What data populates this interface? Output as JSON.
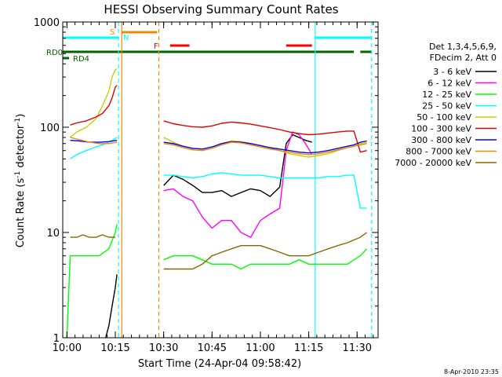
{
  "chart_data": {
    "type": "line",
    "title": "HESSI Observing Summary Count Rates",
    "xlabel": "Start Time (24-Apr-04 09:58:42)",
    "ylabel_main": "Count Rate (s",
    "ylabel_sup1": "-1",
    "ylabel_mid": " detector",
    "ylabel_sup2": "-1",
    "ylabel_end": ")",
    "yscale": "log",
    "xlim": [
      "09:58:42",
      "11:36:30"
    ],
    "ylim": [
      1,
      1000
    ],
    "x_ticks": [
      "10:00",
      "10:15",
      "10:30",
      "10:45",
      "11:00",
      "11:15",
      "11:30"
    ],
    "y_ticks": [
      "1",
      "10",
      "100",
      "1000"
    ],
    "footer_date": "8-Apr-2010 23:35",
    "legend": {
      "header": [
        "Det 1,3,4,5,6,9,",
        "FDecim 2, Att 0"
      ],
      "entries": [
        {
          "label": "3 - 6 keV",
          "color": "#000000"
        },
        {
          "label": "6 - 12 keV",
          "color": "#ff00ff"
        },
        {
          "label": "12 - 25 keV",
          "color": "#00ff00"
        },
        {
          "label": "25 - 50 keV",
          "color": "#00ffff"
        },
        {
          "label": "50 - 100 keV",
          "color": "#cccc00"
        },
        {
          "label": "100 - 300 keV",
          "color": "#dd0000"
        },
        {
          "label": "300 - 800 keV",
          "color": "#0000ff"
        },
        {
          "label": "800 - 7000 keV",
          "color": "#ee8800"
        },
        {
          "label": "7000 - 20000 keV",
          "color": "#886600"
        }
      ]
    },
    "flags": [
      {
        "label": "RD0",
        "color": "#006600",
        "segments": [
          [
            "09:58:42",
            "11:29:00"
          ],
          [
            "11:31:00",
            "11:34:30"
          ]
        ]
      },
      {
        "label": "RD4",
        "color": "#006600",
        "segments": [
          [
            "09:58:42",
            "10:00:00"
          ]
        ]
      },
      {
        "label": "S",
        "color": "#ee8800",
        "segments": [
          [
            "10:17:00",
            "10:28:00"
          ]
        ]
      },
      {
        "label": "F",
        "color": "#ff0000",
        "segments": [
          [
            "10:32:00",
            "10:38:00"
          ],
          [
            "11:08:00",
            "11:16:00"
          ]
        ]
      },
      {
        "label": "N",
        "color": "#00ffff",
        "segments": [
          [
            "09:58:42",
            "10:16:00"
          ],
          [
            "11:17:00",
            "11:34:30"
          ]
        ]
      }
    ],
    "markers": [
      {
        "time": "10:16:00",
        "color": "#00ffff",
        "style": "dash"
      },
      {
        "time": "10:17:00",
        "color": "#ee8800",
        "style": "solid"
      },
      {
        "time": "10:28:30",
        "color": "#ee8800",
        "style": "dash"
      },
      {
        "time": "11:17:00",
        "color": "#00ffff",
        "style": "solid"
      },
      {
        "time": "11:34:30",
        "color": "#00ffff",
        "style": "dash"
      }
    ],
    "series": [
      {
        "name": "3 - 6 keV",
        "color": "#000000",
        "points": [
          [
            "10:12",
            1.0
          ],
          [
            "10:13",
            1.3
          ],
          [
            "10:14",
            2.0
          ],
          [
            "10:15",
            3.0
          ],
          [
            "10:15:30",
            4.0
          ],
          [
            "10:30",
            28
          ],
          [
            "10:33",
            35
          ],
          [
            "10:36",
            32
          ],
          [
            "10:39",
            28
          ],
          [
            "10:42",
            24
          ],
          [
            "10:45",
            24
          ],
          [
            "10:48",
            25
          ],
          [
            "10:51",
            22
          ],
          [
            "10:54",
            24
          ],
          [
            "10:57",
            26
          ],
          [
            "11:00",
            25
          ],
          [
            "11:03",
            22
          ],
          [
            "11:06",
            27
          ],
          [
            "11:08",
            70
          ],
          [
            "11:10",
            85
          ],
          [
            "11:12",
            80
          ],
          [
            "11:14",
            75
          ],
          [
            "11:16",
            72
          ]
        ]
      },
      {
        "name": "6 - 12 keV",
        "color": "#ff00ff",
        "points": [
          [
            "10:30",
            25
          ],
          [
            "10:33",
            26
          ],
          [
            "10:36",
            22
          ],
          [
            "10:39",
            20
          ],
          [
            "10:42",
            14
          ],
          [
            "10:45",
            11
          ],
          [
            "10:48",
            13
          ],
          [
            "10:51",
            13
          ],
          [
            "10:54",
            10
          ],
          [
            "10:57",
            9
          ],
          [
            "11:00",
            13
          ],
          [
            "11:03",
            15
          ],
          [
            "11:06",
            17
          ],
          [
            "11:08",
            60
          ],
          [
            "11:10",
            90
          ],
          [
            "11:12",
            85
          ],
          [
            "11:14",
            70
          ],
          [
            "11:16",
            55
          ]
        ]
      },
      {
        "name": "12 - 25 keV",
        "color": "#00ff00",
        "points": [
          [
            "10:00",
            1.0
          ],
          [
            "10:01",
            6
          ],
          [
            "10:04",
            6
          ],
          [
            "10:07",
            6
          ],
          [
            "10:10",
            6
          ],
          [
            "10:13",
            7
          ],
          [
            "10:15",
            10
          ],
          [
            "10:15:30",
            12
          ],
          [
            "10:30",
            5.5
          ],
          [
            "10:33",
            6
          ],
          [
            "10:36",
            6
          ],
          [
            "10:39",
            6
          ],
          [
            "10:42",
            5.5
          ],
          [
            "10:45",
            5
          ],
          [
            "10:48",
            5
          ],
          [
            "10:51",
            5
          ],
          [
            "10:54",
            4.5
          ],
          [
            "10:57",
            5
          ],
          [
            "11:00",
            5
          ],
          [
            "11:03",
            5
          ],
          [
            "11:06",
            5
          ],
          [
            "11:09",
            5
          ],
          [
            "11:12",
            5.5
          ],
          [
            "11:15",
            5
          ],
          [
            "11:18",
            5
          ],
          [
            "11:21",
            5
          ],
          [
            "11:24",
            5
          ],
          [
            "11:27",
            5
          ],
          [
            "11:29",
            5.5
          ],
          [
            "11:31",
            6
          ],
          [
            "11:33",
            7
          ]
        ]
      },
      {
        "name": "25 - 50 keV",
        "color": "#00ffff",
        "points": [
          [
            "10:01",
            50
          ],
          [
            "10:03",
            55
          ],
          [
            "10:06",
            60
          ],
          [
            "10:09",
            65
          ],
          [
            "10:12",
            70
          ],
          [
            "10:14",
            75
          ],
          [
            "10:15:30",
            80
          ],
          [
            "10:30",
            35
          ],
          [
            "10:33",
            35
          ],
          [
            "10:36",
            34
          ],
          [
            "10:39",
            33
          ],
          [
            "10:42",
            34
          ],
          [
            "10:45",
            36
          ],
          [
            "10:48",
            37
          ],
          [
            "10:51",
            36
          ],
          [
            "10:54",
            35
          ],
          [
            "10:57",
            35
          ],
          [
            "11:00",
            35
          ],
          [
            "11:03",
            34
          ],
          [
            "11:06",
            33
          ],
          [
            "11:09",
            33
          ],
          [
            "11:12",
            33
          ],
          [
            "11:15",
            33
          ],
          [
            "11:18",
            33
          ],
          [
            "11:21",
            34
          ],
          [
            "11:24",
            34
          ],
          [
            "11:27",
            35
          ],
          [
            "11:29",
            35
          ],
          [
            "11:31",
            17
          ],
          [
            "11:33",
            17
          ]
        ]
      },
      {
        "name": "50 - 100 keV",
        "color": "#cccc00",
        "points": [
          [
            "10:01",
            80
          ],
          [
            "10:03",
            90
          ],
          [
            "10:06",
            100
          ],
          [
            "10:09",
            120
          ],
          [
            "10:11",
            160
          ],
          [
            "10:13",
            220
          ],
          [
            "10:14",
            300
          ],
          [
            "10:15",
            350
          ],
          [
            "10:15:30",
            360
          ],
          [
            "10:30",
            80
          ],
          [
            "10:33",
            72
          ],
          [
            "10:36",
            66
          ],
          [
            "10:39",
            63
          ],
          [
            "10:42",
            62
          ],
          [
            "10:45",
            65
          ],
          [
            "10:48",
            70
          ],
          [
            "10:51",
            74
          ],
          [
            "10:54",
            73
          ],
          [
            "10:57",
            70
          ],
          [
            "11:00",
            67
          ],
          [
            "11:03",
            63
          ],
          [
            "11:06",
            60
          ],
          [
            "11:09",
            56
          ],
          [
            "11:12",
            54
          ],
          [
            "11:15",
            52
          ],
          [
            "11:18",
            54
          ],
          [
            "11:21",
            56
          ],
          [
            "11:24",
            60
          ],
          [
            "11:27",
            64
          ],
          [
            "11:29",
            66
          ],
          [
            "11:31",
            70
          ],
          [
            "11:33",
            72
          ]
        ]
      },
      {
        "name": "100 - 300 keV",
        "color": "#dd0000",
        "points": [
          [
            "10:01",
            105
          ],
          [
            "10:03",
            110
          ],
          [
            "10:06",
            115
          ],
          [
            "10:09",
            125
          ],
          [
            "10:11",
            135
          ],
          [
            "10:13",
            160
          ],
          [
            "10:14",
            190
          ],
          [
            "10:15",
            240
          ],
          [
            "10:15:30",
            250
          ],
          [
            "10:30",
            115
          ],
          [
            "10:33",
            108
          ],
          [
            "10:36",
            104
          ],
          [
            "10:39",
            101
          ],
          [
            "10:42",
            100
          ],
          [
            "10:45",
            103
          ],
          [
            "10:48",
            109
          ],
          [
            "10:51",
            112
          ],
          [
            "10:54",
            110
          ],
          [
            "10:57",
            107
          ],
          [
            "11:00",
            103
          ],
          [
            "11:03",
            99
          ],
          [
            "11:06",
            95
          ],
          [
            "11:09",
            90
          ],
          [
            "11:12",
            87
          ],
          [
            "11:15",
            85
          ],
          [
            "11:18",
            86
          ],
          [
            "11:21",
            88
          ],
          [
            "11:24",
            90
          ],
          [
            "11:27",
            92
          ],
          [
            "11:29",
            92
          ],
          [
            "11:31",
            58
          ],
          [
            "11:33",
            60
          ]
        ]
      },
      {
        "name": "300 - 800 keV",
        "color": "#0000ff",
        "points": [
          [
            "10:01",
            75
          ],
          [
            "10:04",
            74
          ],
          [
            "10:07",
            72
          ],
          [
            "10:10",
            72
          ],
          [
            "10:13",
            73
          ],
          [
            "10:15:30",
            75
          ],
          [
            "10:30",
            72
          ],
          [
            "10:33",
            70
          ],
          [
            "10:36",
            66
          ],
          [
            "10:39",
            63
          ],
          [
            "10:42",
            62
          ],
          [
            "10:45",
            65
          ],
          [
            "10:48",
            70
          ],
          [
            "10:51",
            73
          ],
          [
            "10:54",
            72
          ],
          [
            "10:57",
            70
          ],
          [
            "11:00",
            67
          ],
          [
            "11:03",
            64
          ],
          [
            "11:06",
            62
          ],
          [
            "11:09",
            60
          ],
          [
            "11:12",
            58
          ],
          [
            "11:15",
            57
          ],
          [
            "11:18",
            58
          ],
          [
            "11:21",
            60
          ],
          [
            "11:24",
            63
          ],
          [
            "11:27",
            66
          ],
          [
            "11:29",
            68
          ],
          [
            "11:31",
            72
          ],
          [
            "11:33",
            74
          ]
        ]
      },
      {
        "name": "800 - 7000 keV",
        "color": "#ee8800",
        "points": [
          [
            "10:01",
            80
          ],
          [
            "10:04",
            76
          ],
          [
            "10:07",
            72
          ],
          [
            "10:10",
            70
          ],
          [
            "10:13",
            70
          ],
          [
            "10:15:30",
            72
          ],
          [
            "10:30",
            70
          ],
          [
            "10:33",
            68
          ],
          [
            "10:36",
            64
          ],
          [
            "10:39",
            61
          ],
          [
            "10:42",
            60
          ],
          [
            "10:45",
            63
          ],
          [
            "10:48",
            68
          ],
          [
            "10:51",
            72
          ],
          [
            "10:54",
            71
          ],
          [
            "10:57",
            68
          ],
          [
            "11:00",
            65
          ],
          [
            "11:03",
            62
          ],
          [
            "11:06",
            60
          ],
          [
            "11:09",
            58
          ],
          [
            "11:12",
            56
          ],
          [
            "11:15",
            55
          ],
          [
            "11:18",
            56
          ],
          [
            "11:21",
            58
          ],
          [
            "11:24",
            61
          ],
          [
            "11:27",
            64
          ],
          [
            "11:29",
            66
          ],
          [
            "11:31",
            68
          ],
          [
            "11:33",
            70
          ]
        ]
      },
      {
        "name": "7000 - 20000 keV",
        "color": "#886600",
        "points": [
          [
            "10:01",
            9
          ],
          [
            "10:03",
            9
          ],
          [
            "10:05",
            9.5
          ],
          [
            "10:07",
            9
          ],
          [
            "10:09",
            9
          ],
          [
            "10:11",
            9.5
          ],
          [
            "10:13",
            9
          ],
          [
            "10:15",
            9
          ],
          [
            "10:30",
            4.5
          ],
          [
            "10:33",
            4.5
          ],
          [
            "10:36",
            4.5
          ],
          [
            "10:39",
            4.5
          ],
          [
            "10:42",
            5
          ],
          [
            "10:45",
            6
          ],
          [
            "10:48",
            6.5
          ],
          [
            "10:51",
            7
          ],
          [
            "10:54",
            7.5
          ],
          [
            "10:57",
            7.5
          ],
          [
            "11:00",
            7.5
          ],
          [
            "11:03",
            7
          ],
          [
            "11:06",
            6.5
          ],
          [
            "11:09",
            6
          ],
          [
            "11:12",
            6
          ],
          [
            "11:15",
            6
          ],
          [
            "11:18",
            6.5
          ],
          [
            "11:21",
            7
          ],
          [
            "11:24",
            7.5
          ],
          [
            "11:27",
            8
          ],
          [
            "11:29",
            8.5
          ],
          [
            "11:31",
            9
          ],
          [
            "11:33",
            10
          ]
        ]
      }
    ]
  }
}
